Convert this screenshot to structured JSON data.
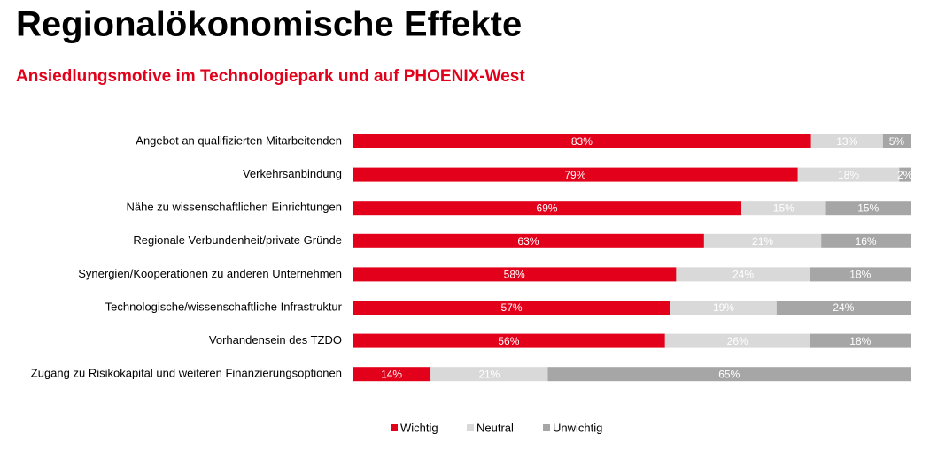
{
  "chart_data": {
    "type": "stacked-bar-horizontal-percent",
    "title": "Regionalökonomische Effekte",
    "subtitle": "Ansiedlungsmotive im Technologiepark und auf PHOENIX-West",
    "categories": [
      "Angebot an qualifizierten Mitarbeitenden",
      "Verkehrsanbindung",
      "Nähe zu wissenschaftlichen Einrichtungen",
      "Regionale Verbundenheit/private Gründe",
      "Synergien/Kooperationen zu anderen Unternehmen",
      "Technologische/wissenschaftliche Infrastruktur",
      "Vorhandensein des TZDO",
      "Zugang zu Risikokapital und weiteren Finanzierungsoptionen"
    ],
    "series": [
      {
        "name": "Wichtig",
        "color": "#e2001a",
        "values": [
          83,
          79,
          69,
          63,
          58,
          57,
          56,
          14
        ],
        "value_labels": [
          "83%",
          "79%",
          "69%",
          "63%",
          "58%",
          "57%",
          "56%",
          "14%"
        ]
      },
      {
        "name": "Neutral",
        "color": "#d9d9d9",
        "values": [
          13,
          18,
          15,
          21,
          24,
          19,
          26,
          21
        ],
        "value_labels": [
          "13%",
          "18%",
          "15%",
          "21%",
          "24%",
          "19%",
          "26%",
          "21%"
        ]
      },
      {
        "name": "Unwichtig",
        "color": "#a6a6a6",
        "values": [
          5,
          2,
          15,
          16,
          18,
          24,
          18,
          65
        ],
        "value_labels": [
          "5%",
          "2%",
          "15%",
          "16%",
          "18%",
          "24%",
          "18%",
          "65%"
        ]
      }
    ],
    "legend": "bottom"
  }
}
